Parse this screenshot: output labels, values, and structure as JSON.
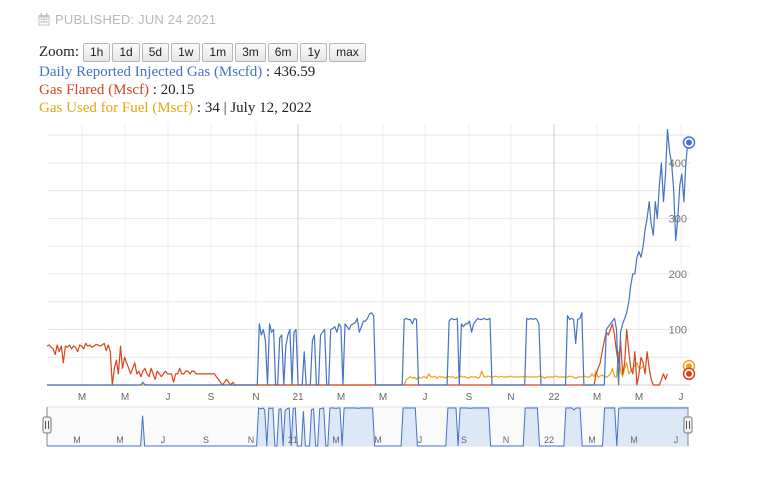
{
  "header": {
    "published": "PUBLISHED: JUN 24 2021"
  },
  "zoom": {
    "label": "Zoom:",
    "buttons": [
      "1h",
      "1d",
      "5d",
      "1w",
      "1m",
      "3m",
      "6m",
      "1y",
      "max"
    ]
  },
  "legend": {
    "gas": {
      "name": "Daily Reported Injected Gas (Mscfd)",
      "sep": " : ",
      "value": "436.59"
    },
    "flared": {
      "name": "Gas Flared (Mscf)",
      "sep": " : ",
      "value": "20.15"
    },
    "fuel": {
      "name": "Gas Used for Fuel (Mscf)",
      "sep": " : ",
      "value": "34",
      "date_sep": "  | ",
      "date": "July 12, 2022"
    }
  },
  "colors": {
    "gas": "#4472c4",
    "flared": "#d9441c",
    "fuel": "#e8a317",
    "grid": "#e6e6e6",
    "navigator_fill": "#dde8f7"
  },
  "chart_data": {
    "type": "line",
    "x_tick_labels": [
      "M",
      "M",
      "J",
      "S",
      "N",
      "21",
      "M",
      "M",
      "J",
      "S",
      "N",
      "22",
      "M",
      "M",
      "J"
    ],
    "y_tick_labels": [
      "100",
      "200",
      "300",
      "400"
    ],
    "ylim": [
      0,
      470
    ],
    "navigator_tick_labels": [
      "M",
      "M",
      "J",
      "S",
      "N",
      "21",
      "M",
      "M",
      "J",
      "S",
      "N",
      "22",
      "M",
      "M",
      "J"
    ],
    "series": [
      {
        "name": "Daily Reported Injected Gas (Mscfd)",
        "values": [
          0,
          0,
          0,
          0,
          0,
          0,
          0,
          0,
          0,
          0,
          0,
          0,
          0,
          0,
          0,
          0,
          0,
          0,
          0,
          0,
          0,
          0,
          0,
          0,
          0,
          0,
          0,
          0,
          0,
          0,
          0,
          0,
          0,
          0,
          0,
          0,
          0,
          0,
          0,
          0,
          0,
          0,
          0,
          0,
          0,
          0,
          0,
          5,
          0,
          0,
          0,
          0,
          0,
          0,
          0,
          0,
          0,
          0,
          0,
          0,
          0,
          0,
          0,
          0,
          0,
          0,
          0,
          0,
          0,
          0,
          0,
          0,
          0,
          0,
          0,
          0,
          0,
          0,
          0,
          0,
          0,
          0,
          0,
          0,
          0,
          0,
          0,
          0,
          0,
          0,
          0,
          0,
          0,
          0,
          0,
          0,
          0,
          0,
          0,
          0,
          0,
          0,
          0,
          0,
          110,
          90,
          100,
          80,
          0,
          110,
          95,
          100,
          0,
          0,
          85,
          90,
          0,
          70,
          90,
          100,
          0,
          95,
          100,
          0,
          0,
          0,
          60,
          0,
          0,
          0,
          80,
          90,
          0,
          0,
          90,
          95,
          100,
          0,
          0,
          100,
          102,
          105,
          95,
          110,
          105,
          0,
          110,
          105,
          100,
          108,
          110,
          112,
          120,
          95,
          105,
          115,
          115,
          120,
          128,
          130,
          125,
          0,
          0,
          0,
          0,
          0,
          0,
          0,
          0,
          0,
          0,
          0,
          0,
          0,
          0,
          118,
          120,
          118,
          118,
          110,
          120,
          118,
          0,
          0,
          0,
          0,
          0,
          0,
          0,
          0,
          0,
          0,
          0,
          0,
          0,
          0,
          0,
          115,
          120,
          118,
          118,
          120,
          0,
          110,
          105,
          110,
          110,
          115,
          95,
          110,
          115,
          120,
          118,
          118,
          120,
          118,
          118,
          120,
          0,
          0,
          0,
          0,
          0,
          0,
          0,
          0,
          0,
          0,
          0,
          0,
          0,
          0,
          0,
          0,
          0,
          120,
          118,
          120,
          118,
          120,
          118,
          110,
          0,
          0,
          0,
          0,
          0,
          0,
          0,
          0,
          0,
          0,
          0,
          0,
          0,
          125,
          118,
          120,
          118,
          75,
          118,
          120,
          130,
          0,
          0,
          0,
          0,
          0,
          0,
          0,
          0,
          0,
          0,
          0,
          100,
          105,
          110,
          115,
          120,
          100,
          0,
          95,
          110,
          120,
          130,
          150,
          180,
          200,
          200,
          230,
          240,
          230,
          250,
          280,
          300,
          330,
          290,
          270,
          330,
          300,
          360,
          400,
          330,
          380,
          460,
          420,
          400,
          350,
          260,
          300,
          360,
          380,
          330,
          400,
          440,
          436.59
        ]
      },
      {
        "name": "Gas Flared (Mscf)",
        "values": [
          70,
          72,
          68,
          65,
          55,
          72,
          60,
          70,
          40,
          70,
          68,
          72,
          65,
          70,
          68,
          60,
          72,
          70,
          65,
          75,
          70,
          72,
          68,
          70,
          73,
          72,
          70,
          72,
          75,
          62,
          72,
          60,
          0,
          30,
          45,
          20,
          70,
          30,
          50,
          40,
          30,
          20,
          30,
          40,
          20,
          25,
          15,
          25,
          30,
          20,
          15,
          30,
          20,
          10,
          25,
          20,
          15,
          20,
          25,
          20,
          20,
          20,
          5,
          20,
          20,
          30,
          20,
          20,
          25,
          25,
          20,
          25,
          25,
          20,
          20,
          20,
          20,
          20,
          20,
          20,
          20,
          20,
          20,
          15,
          10,
          5,
          0,
          5,
          10,
          5,
          0,
          5,
          0,
          0,
          0,
          0,
          0,
          0,
          0,
          0,
          0,
          0,
          0,
          0,
          0,
          0,
          0,
          0,
          0,
          0,
          0,
          0,
          0,
          0,
          0,
          0,
          0,
          0,
          0,
          0,
          0,
          0,
          0,
          0,
          0,
          0,
          0,
          0,
          0,
          0,
          0,
          0,
          0,
          0,
          0,
          0,
          0,
          0,
          0,
          0,
          0,
          0,
          0,
          0,
          0,
          0,
          0,
          0,
          0,
          0,
          0,
          0,
          0,
          0,
          0,
          0,
          0,
          0,
          0,
          0,
          0,
          0,
          0,
          0,
          0,
          0,
          0,
          0,
          0,
          0,
          0,
          0,
          0,
          0,
          0,
          0,
          0,
          0,
          0,
          0,
          0,
          0,
          0,
          0,
          0,
          0,
          0,
          0,
          0,
          0,
          0,
          0,
          0,
          0,
          0,
          0,
          0,
          0,
          0,
          0,
          0,
          0,
          0,
          0,
          0,
          0,
          0,
          0,
          0,
          0,
          0,
          0,
          0,
          0,
          0,
          0,
          0,
          0,
          0,
          0,
          0,
          0,
          0,
          0,
          0,
          0,
          0,
          0,
          0,
          0,
          0,
          0,
          0,
          0,
          0,
          0,
          0,
          0,
          0,
          0,
          0,
          0,
          0,
          0,
          0,
          0,
          0,
          0,
          0,
          0,
          0,
          0,
          0,
          0,
          0,
          0,
          0,
          0,
          0,
          0,
          0,
          0,
          0,
          0,
          0,
          0,
          0,
          0,
          0,
          20,
          30,
          40,
          60,
          80,
          95,
          90,
          100,
          110,
          90,
          60,
          40,
          80,
          20,
          40,
          100,
          60,
          30,
          20,
          60,
          0,
          20,
          50,
          40,
          20,
          60,
          30,
          10,
          0,
          0,
          0,
          0,
          10,
          20,
          10,
          20.15
        ]
      },
      {
        "name": "Gas Used for Fuel (Mscf)",
        "values": [
          0,
          0,
          0,
          0,
          0,
          0,
          0,
          0,
          0,
          0,
          0,
          0,
          0,
          0,
          0,
          0,
          0,
          0,
          0,
          0,
          0,
          0,
          0,
          0,
          0,
          0,
          0,
          0,
          0,
          0,
          0,
          0,
          0,
          0,
          0,
          0,
          0,
          0,
          0,
          0,
          0,
          0,
          0,
          0,
          0,
          0,
          0,
          0,
          0,
          0,
          0,
          0,
          0,
          0,
          0,
          0,
          0,
          0,
          0,
          0,
          0,
          0,
          0,
          0,
          0,
          0,
          0,
          0,
          0,
          0,
          0,
          0,
          0,
          0,
          0,
          0,
          0,
          0,
          0,
          0,
          0,
          0,
          0,
          0,
          0,
          0,
          0,
          0,
          0,
          0,
          0,
          0,
          0,
          0,
          0,
          0,
          0,
          0,
          0,
          0,
          0,
          0,
          0,
          0,
          0,
          0,
          0,
          0,
          0,
          0,
          0,
          0,
          0,
          0,
          0,
          0,
          0,
          0,
          0,
          0,
          0,
          0,
          0,
          0,
          0,
          0,
          0,
          0,
          0,
          0,
          0,
          0,
          0,
          0,
          0,
          0,
          0,
          0,
          0,
          0,
          0,
          0,
          0,
          0,
          0,
          0,
          0,
          0,
          0,
          0,
          0,
          0,
          0,
          0,
          0,
          0,
          0,
          0,
          0,
          0,
          0,
          0,
          0,
          0,
          0,
          0,
          0,
          0,
          0,
          0,
          0,
          0,
          0,
          0,
          0,
          0,
          10,
          12,
          15,
          12,
          14,
          10,
          15,
          12,
          14,
          15,
          12,
          20,
          15,
          14,
          16,
          12,
          15,
          14,
          15,
          12,
          16,
          15,
          14,
          15,
          12,
          14,
          15,
          16,
          14,
          15,
          12,
          14,
          15,
          14,
          15,
          12,
          14,
          25,
          15,
          14,
          16,
          15,
          14,
          15,
          16,
          14,
          15,
          15,
          14,
          15,
          14,
          16,
          15,
          14,
          15,
          14,
          15,
          14,
          16,
          15,
          14,
          15,
          14,
          15,
          14,
          16,
          15,
          14,
          12,
          15,
          14,
          15,
          14,
          16,
          15,
          14,
          15,
          14,
          15,
          14,
          16,
          15,
          14,
          12,
          14,
          15,
          14,
          16,
          15,
          14,
          15,
          20,
          15,
          25,
          14,
          16,
          18,
          15,
          14,
          16,
          20,
          30,
          15,
          14,
          60,
          25,
          15,
          30,
          40,
          20,
          25,
          30,
          35,
          40,
          30,
          30,
          34
        ]
      }
    ]
  }
}
